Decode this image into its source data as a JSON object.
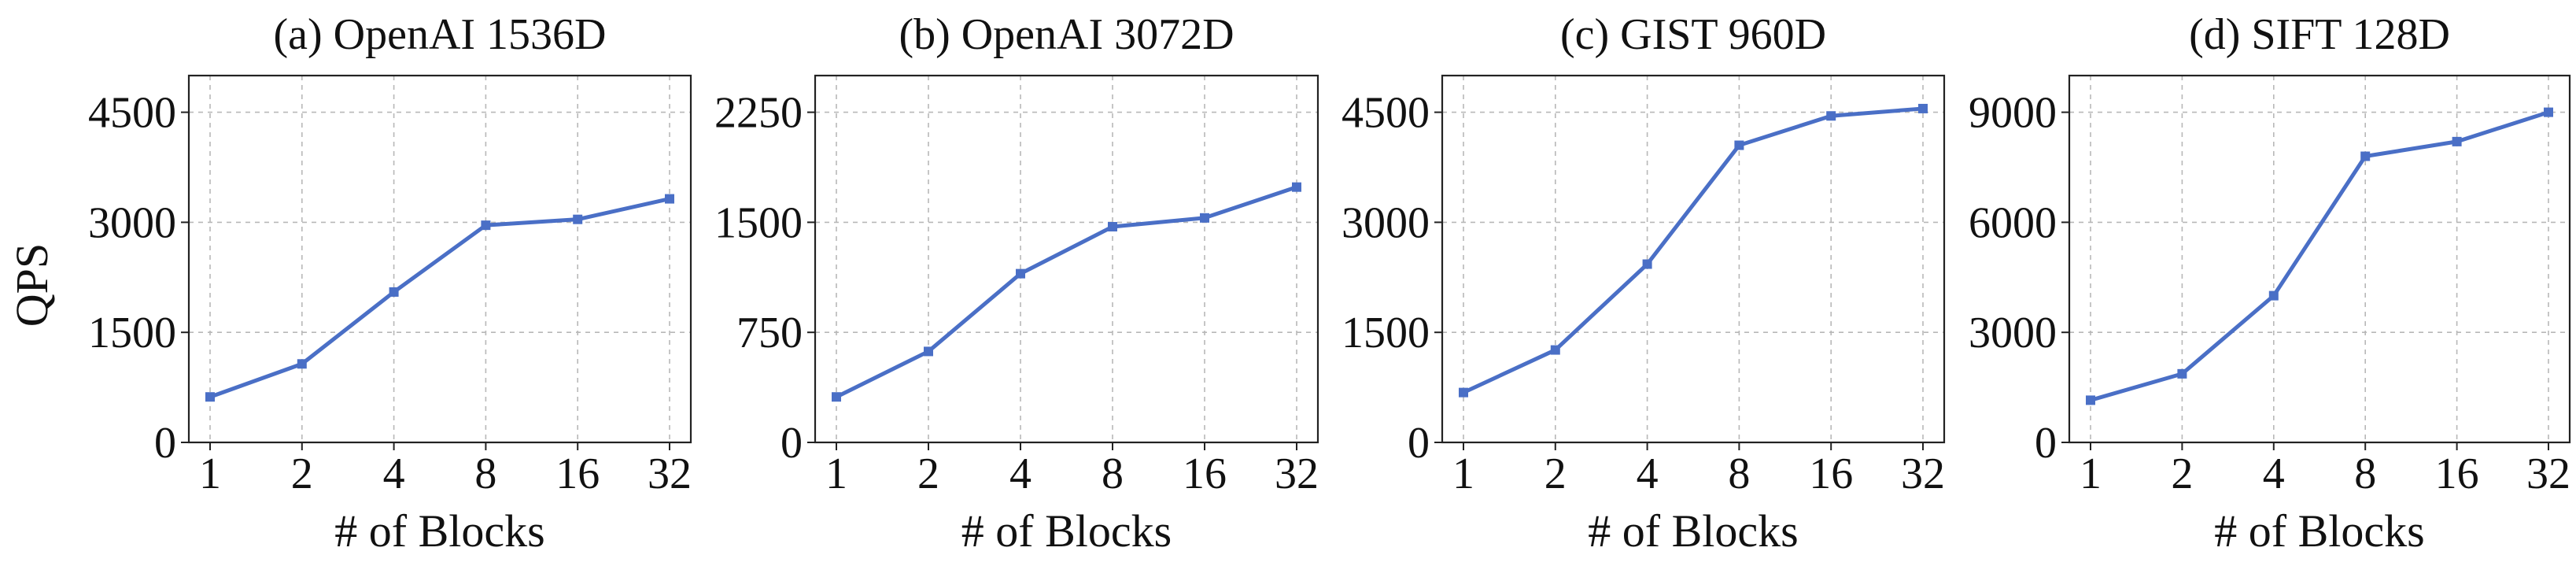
{
  "figure": {
    "ylabel": "QPS",
    "line_color": "#4a6fc6"
  },
  "chart_data": [
    {
      "type": "line",
      "title": "(a) OpenAI 1536D",
      "xlabel": "# of Blocks",
      "ylabel": "QPS",
      "categories": [
        "1",
        "2",
        "4",
        "8",
        "16",
        "32"
      ],
      "values": [
        620,
        1070,
        2050,
        2960,
        3040,
        3320
      ],
      "yticks": [
        0,
        1500,
        3000,
        4500
      ],
      "ylim": [
        0,
        5000
      ],
      "grid": true
    },
    {
      "type": "line",
      "title": "(b) OpenAI 3072D",
      "xlabel": "# of Blocks",
      "ylabel": "",
      "categories": [
        "1",
        "2",
        "4",
        "8",
        "16",
        "32"
      ],
      "values": [
        310,
        620,
        1150,
        1470,
        1530,
        1740
      ],
      "yticks": [
        0,
        750,
        1500,
        2250
      ],
      "ylim": [
        0,
        2500
      ],
      "grid": true
    },
    {
      "type": "line",
      "title": "(c) GIST 960D",
      "xlabel": "# of Blocks",
      "ylabel": "",
      "categories": [
        "1",
        "2",
        "4",
        "8",
        "16",
        "32"
      ],
      "values": [
        680,
        1260,
        2430,
        4050,
        4450,
        4550
      ],
      "yticks": [
        0,
        1500,
        3000,
        4500
      ],
      "ylim": [
        0,
        5000
      ],
      "grid": true
    },
    {
      "type": "line",
      "title": "(d) SIFT 128D",
      "xlabel": "# of Blocks",
      "ylabel": "",
      "categories": [
        "1",
        "2",
        "4",
        "8",
        "16",
        "32"
      ],
      "values": [
        1150,
        1870,
        4000,
        7800,
        8200,
        9000
      ],
      "yticks": [
        0,
        3000,
        6000,
        9000
      ],
      "ylim": [
        0,
        10000
      ],
      "grid": true
    }
  ]
}
